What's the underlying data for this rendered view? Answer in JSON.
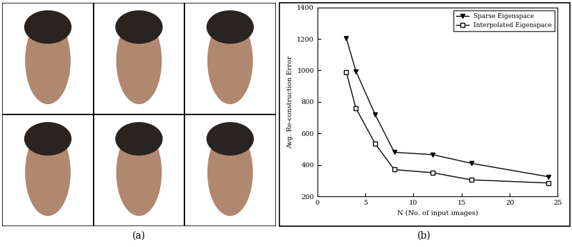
{
  "chart_data": {
    "type": "line",
    "caption": "(b)",
    "x_label": "N (No. of input images)",
    "y_label": "Avg. Re-construction Error",
    "x": [
      3,
      4,
      6,
      8,
      12,
      16,
      24
    ],
    "series": [
      {
        "name": "Sparse Eigenspace",
        "color": "#000000",
        "marker": "triangle_down",
        "line_style": "solid",
        "values": [
          1205,
          995,
          720,
          480,
          465,
          410,
          325
        ]
      },
      {
        "name": "Interpolated Eigenspace",
        "color": "#000000",
        "marker": "square",
        "line_style": "solid",
        "values": [
          990,
          760,
          535,
          370,
          350,
          305,
          285
        ]
      }
    ],
    "xlim": [
      0,
      25
    ],
    "xticks": [
      0,
      5,
      10,
      15,
      20,
      25
    ],
    "ylim": [
      200,
      1400
    ],
    "yticks": [
      200,
      400,
      600,
      800,
      1000,
      1200,
      1400
    ],
    "legend": "upper right",
    "grid": false
  },
  "image_panel": {
    "caption": "(a)",
    "rows": 2,
    "columns": 3
  }
}
